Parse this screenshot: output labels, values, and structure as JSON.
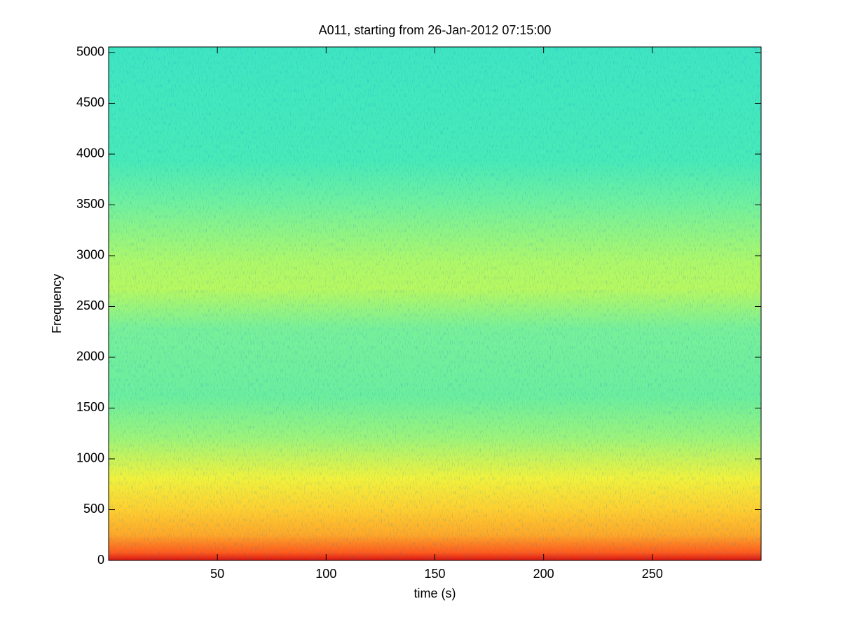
{
  "chart_data": {
    "type": "spectrogram",
    "title": "A011, starting from 26-Jan-2012 07:15:00",
    "x_label": "time (s)",
    "y_label": "Frequency",
    "colormap": "jet",
    "xlim": [
      0,
      300
    ],
    "xticks": [
      50,
      100,
      150,
      200,
      250
    ],
    "ylim": [
      0,
      5055
    ],
    "yticks": [
      0,
      500,
      1000,
      1500,
      2000,
      2500,
      3000,
      3500,
      4000,
      4500,
      5000
    ],
    "grid": false
  }
}
